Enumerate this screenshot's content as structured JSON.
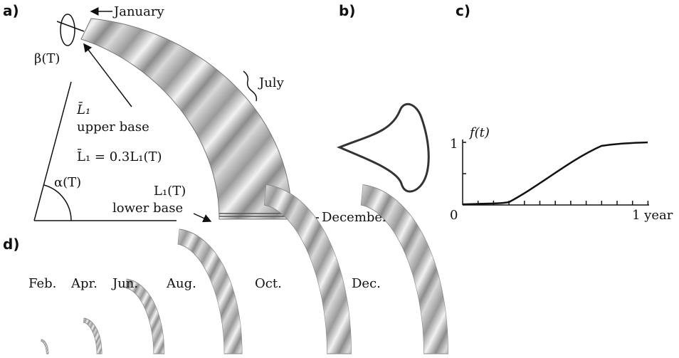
{
  "panels": {
    "a": {
      "label": "a)",
      "january": "January",
      "july": "July",
      "december": "December",
      "beta": "β(T)",
      "upper_base_symbol": "L̄₁",
      "upper_base": "upper base",
      "ratio": "L̄₁ = 0.3L₁(T)",
      "alpha": "α(T)",
      "lower_base_symbol": "L₁(T)",
      "lower_base": "lower base"
    },
    "b": {
      "label": "b)"
    },
    "c": {
      "label": "c)",
      "y_label": "f(t)",
      "y_tick": "1",
      "x_start": "0",
      "x_end": "1 year"
    },
    "d": {
      "label": "d)",
      "months": [
        "Feb.",
        "Apr.",
        "Jun.",
        "Aug.",
        "Oct.",
        "Dec."
      ]
    }
  }
}
